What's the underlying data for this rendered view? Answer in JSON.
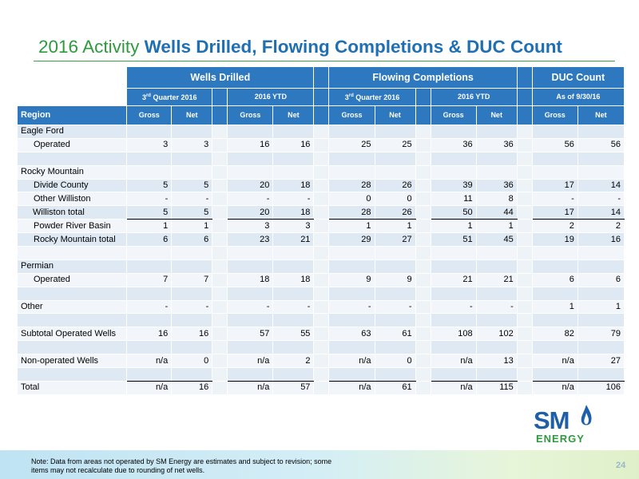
{
  "title": {
    "prefix": "2016 Activity",
    "main": "Wells Drilled, Flowing Completions & DUC Count"
  },
  "table": {
    "groups": [
      "Wells Drilled",
      "Flowing Completions",
      "DUC Count"
    ],
    "subgroups": {
      "q3_pre": "3",
      "q3_sup": "rd",
      "q3_post": " Quarter 2016",
      "ytd": "2016 YTD",
      "as_of": "As of 9/30/16"
    },
    "region_header": "Region",
    "gross": "Gross",
    "net": "Net",
    "rows": [
      {
        "label": "Eagle Ford",
        "vals": [
          "",
          "",
          "",
          "",
          "",
          "",
          "",
          "",
          "",
          ""
        ]
      },
      {
        "label": "Operated",
        "vals": [
          "3",
          "3",
          "16",
          "16",
          "25",
          "25",
          "36",
          "36",
          "56",
          "56"
        ]
      },
      {
        "label": "",
        "vals": [
          "",
          "",
          "",
          "",
          "",
          "",
          "",
          "",
          "",
          ""
        ]
      },
      {
        "label": "Rocky Mountain",
        "vals": [
          "",
          "",
          "",
          "",
          "",
          "",
          "",
          "",
          "",
          ""
        ]
      },
      {
        "label": "Divide County",
        "vals": [
          "5",
          "5",
          "20",
          "18",
          "28",
          "26",
          "39",
          "36",
          "17",
          "14"
        ]
      },
      {
        "label": "Other Williston",
        "vals": [
          "-",
          "-",
          "-",
          "-",
          "0",
          "0",
          "11",
          "8",
          "-",
          "-"
        ]
      },
      {
        "label": "Williston total",
        "vals": [
          "5",
          "5",
          "20",
          "18",
          "28",
          "26",
          "50",
          "44",
          "17",
          "14"
        ]
      },
      {
        "label": "Powder River Basin",
        "vals": [
          "1",
          "1",
          "3",
          "3",
          "1",
          "1",
          "1",
          "1",
          "2",
          "2"
        ]
      },
      {
        "label": "Rocky Mountain total",
        "vals": [
          "6",
          "6",
          "23",
          "21",
          "29",
          "27",
          "51",
          "45",
          "19",
          "16"
        ]
      },
      {
        "label": "",
        "vals": [
          "",
          "",
          "",
          "",
          "",
          "",
          "",
          "",
          "",
          ""
        ]
      },
      {
        "label": "Permian",
        "vals": [
          "",
          "",
          "",
          "",
          "",
          "",
          "",
          "",
          "",
          ""
        ]
      },
      {
        "label": "Operated",
        "vals": [
          "7",
          "7",
          "18",
          "18",
          "9",
          "9",
          "21",
          "21",
          "6",
          "6"
        ]
      },
      {
        "label": "",
        "vals": [
          "",
          "",
          "",
          "",
          "",
          "",
          "",
          "",
          "",
          ""
        ]
      },
      {
        "label": "Other",
        "vals": [
          "-",
          "-",
          "-",
          "-",
          "-",
          "-",
          "-",
          "-",
          "1",
          "1"
        ]
      },
      {
        "label": "",
        "vals": [
          "",
          "",
          "",
          "",
          "",
          "",
          "",
          "",
          "",
          ""
        ]
      },
      {
        "label": "Subtotal Operated Wells",
        "vals": [
          "16",
          "16",
          "57",
          "55",
          "63",
          "61",
          "108",
          "102",
          "82",
          "79"
        ]
      },
      {
        "label": "",
        "vals": [
          "",
          "",
          "",
          "",
          "",
          "",
          "",
          "",
          "",
          ""
        ]
      },
      {
        "label": "Non-operated Wells",
        "vals": [
          "n/a",
          "0",
          "n/a",
          "2",
          "n/a",
          "0",
          "n/a",
          "13",
          "n/a",
          "27"
        ]
      },
      {
        "label": "",
        "vals": [
          "",
          "",
          "",
          "",
          "",
          "",
          "",
          "",
          "",
          ""
        ]
      },
      {
        "label": "Total",
        "vals": [
          "n/a",
          "16",
          "n/a",
          "57",
          "n/a",
          "61",
          "n/a",
          "115",
          "n/a",
          "106"
        ]
      }
    ]
  },
  "logo": {
    "sm": "SM",
    "energy": "ENERGY"
  },
  "note": "Note: Data from areas not operated by SM Energy are estimates and subject to revision; some items may not recalculate due to rounding of net wells.",
  "page_number": "24",
  "colors": {
    "header_blue": "#2e78bf",
    "title_green": "#2e9a3e",
    "title_blue": "#1f6fb3"
  }
}
